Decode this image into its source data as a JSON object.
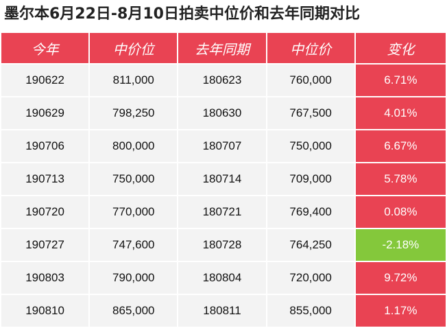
{
  "title": "墨尔本6月22日-8月10日拍卖中位价和去年同期对比",
  "colors": {
    "header_bg": "#e94353",
    "increase": "#e94353",
    "decrease": "#84c83b",
    "cell_bg": "#f3f3f3"
  },
  "columns": [
    "今年",
    "中价位",
    "去年同期",
    "中位价",
    "变化"
  ],
  "rows": [
    {
      "this_year": "190622",
      "median_this": "811,000",
      "last_year": "180623",
      "median_last": "760,000",
      "change": "6.71%",
      "trend": "up"
    },
    {
      "this_year": "190629",
      "median_this": "798,250",
      "last_year": "180630",
      "median_last": "767,500",
      "change": "4.01%",
      "trend": "up"
    },
    {
      "this_year": "190706",
      "median_this": "800,000",
      "last_year": "180707",
      "median_last": "750,000",
      "change": "6.67%",
      "trend": "up"
    },
    {
      "this_year": "190713",
      "median_this": "750,000",
      "last_year": "180714",
      "median_last": "709,000",
      "change": "5.78%",
      "trend": "up"
    },
    {
      "this_year": "190720",
      "median_this": "770,000",
      "last_year": "180721",
      "median_last": "769,400",
      "change": "0.08%",
      "trend": "up"
    },
    {
      "this_year": "190727",
      "median_this": "747,600",
      "last_year": "180728",
      "median_last": "764,250",
      "change": "-2.18%",
      "trend": "down"
    },
    {
      "this_year": "190803",
      "median_this": "790,000",
      "last_year": "180804",
      "median_last": "720,000",
      "change": "9.72%",
      "trend": "up"
    },
    {
      "this_year": "190810",
      "median_this": "865,000",
      "last_year": "180811",
      "median_last": "855,000",
      "change": "1.17%",
      "trend": "up"
    }
  ]
}
